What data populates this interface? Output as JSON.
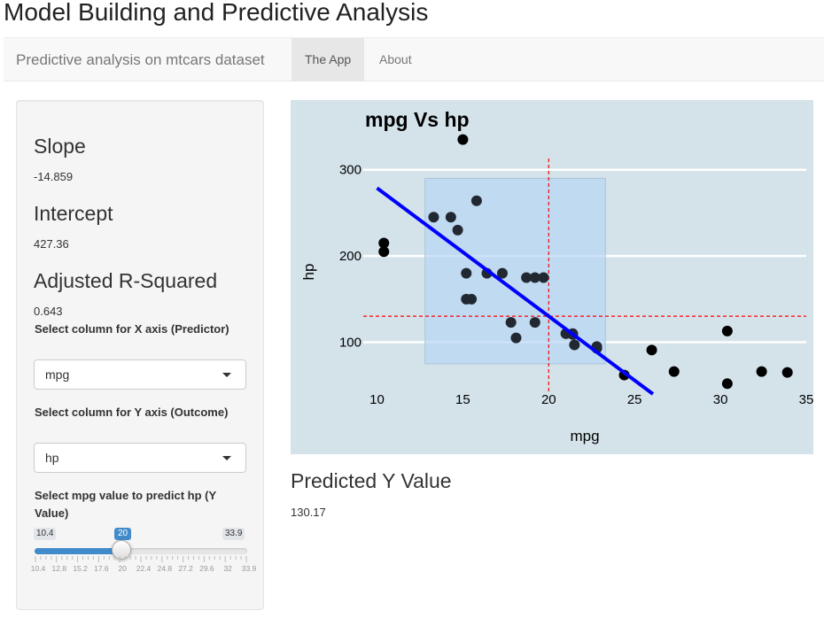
{
  "app": {
    "title": "Model Building and Predictive Analysis"
  },
  "navbar": {
    "brand": "Predictive analysis on mtcars dataset",
    "tabs": [
      {
        "label": "The App",
        "active": true
      },
      {
        "label": "About",
        "active": false
      }
    ]
  },
  "sidebar": {
    "slope": {
      "label": "Slope",
      "value": "-14.859"
    },
    "intercept": {
      "label": "Intercept",
      "value": "427.36"
    },
    "r2": {
      "label": "Adjusted R-Squared",
      "value": "0.643"
    },
    "x_select": {
      "label": "Select column for X axis (Predictor)",
      "value": "mpg",
      "caret_icon": "chevron-down-icon"
    },
    "y_select": {
      "label": "Select column for Y axis (Outcome)",
      "value": "hp",
      "caret_icon": "chevron-down-icon"
    },
    "slider": {
      "label": "Select mpg value to predict hp (Y Value)",
      "min": 10.4,
      "max": 33.9,
      "value": 20,
      "min_label": "10.4",
      "max_label": "33.9",
      "value_label": "20",
      "tick_labels": [
        "10.4",
        "12.8",
        "15.2",
        "17.6",
        "20",
        "22.4",
        "24.8",
        "27.2",
        "29.6",
        "32",
        "33.9"
      ],
      "fill_color": "#428bca"
    }
  },
  "chart_data": {
    "type": "scatter",
    "title": "mpg Vs hp",
    "xlabel": "mpg",
    "ylabel": "hp",
    "xlim": [
      9.2,
      35
    ],
    "ylim": [
      40,
      350
    ],
    "x_ticks": [
      10,
      15,
      20,
      25,
      30,
      35
    ],
    "y_ticks": [
      100,
      200,
      300
    ],
    "x_tick_labels": [
      "10",
      "15",
      "20",
      "25",
      "30",
      "35"
    ],
    "y_tick_labels": [
      "100",
      "200",
      "300"
    ],
    "grid": "horizontal",
    "points": [
      [
        21.0,
        110
      ],
      [
        21.0,
        110
      ],
      [
        22.8,
        93
      ],
      [
        21.4,
        110
      ],
      [
        18.7,
        175
      ],
      [
        18.1,
        105
      ],
      [
        14.3,
        245
      ],
      [
        24.4,
        62
      ],
      [
        22.8,
        95
      ],
      [
        19.2,
        123
      ],
      [
        17.8,
        123
      ],
      [
        16.4,
        180
      ],
      [
        17.3,
        180
      ],
      [
        15.2,
        180
      ],
      [
        10.4,
        205
      ],
      [
        10.4,
        215
      ],
      [
        14.7,
        230
      ],
      [
        32.4,
        66
      ],
      [
        30.4,
        52
      ],
      [
        33.9,
        65
      ],
      [
        21.5,
        97
      ],
      [
        15.5,
        150
      ],
      [
        15.2,
        150
      ],
      [
        13.3,
        245
      ],
      [
        19.2,
        175
      ],
      [
        27.3,
        66
      ],
      [
        26.0,
        91
      ],
      [
        30.4,
        113
      ],
      [
        15.8,
        264
      ],
      [
        19.7,
        175
      ],
      [
        15.0,
        335
      ],
      [
        21.4,
        109
      ]
    ],
    "regression": {
      "slope": -14.859,
      "intercept": 427.36,
      "color": "#0000ff"
    },
    "prediction": {
      "x": 20,
      "y": 130.17,
      "line_color": "#ff0000"
    },
    "highlight_rect": {
      "x": [
        12.8,
        23.3
      ],
      "y": [
        75,
        290
      ],
      "color": "#b8d5f5"
    },
    "background": "#d4e3ea",
    "point_color": "#000000"
  },
  "prediction_panel": {
    "label": "Predicted Y Value",
    "value": "130.17"
  }
}
